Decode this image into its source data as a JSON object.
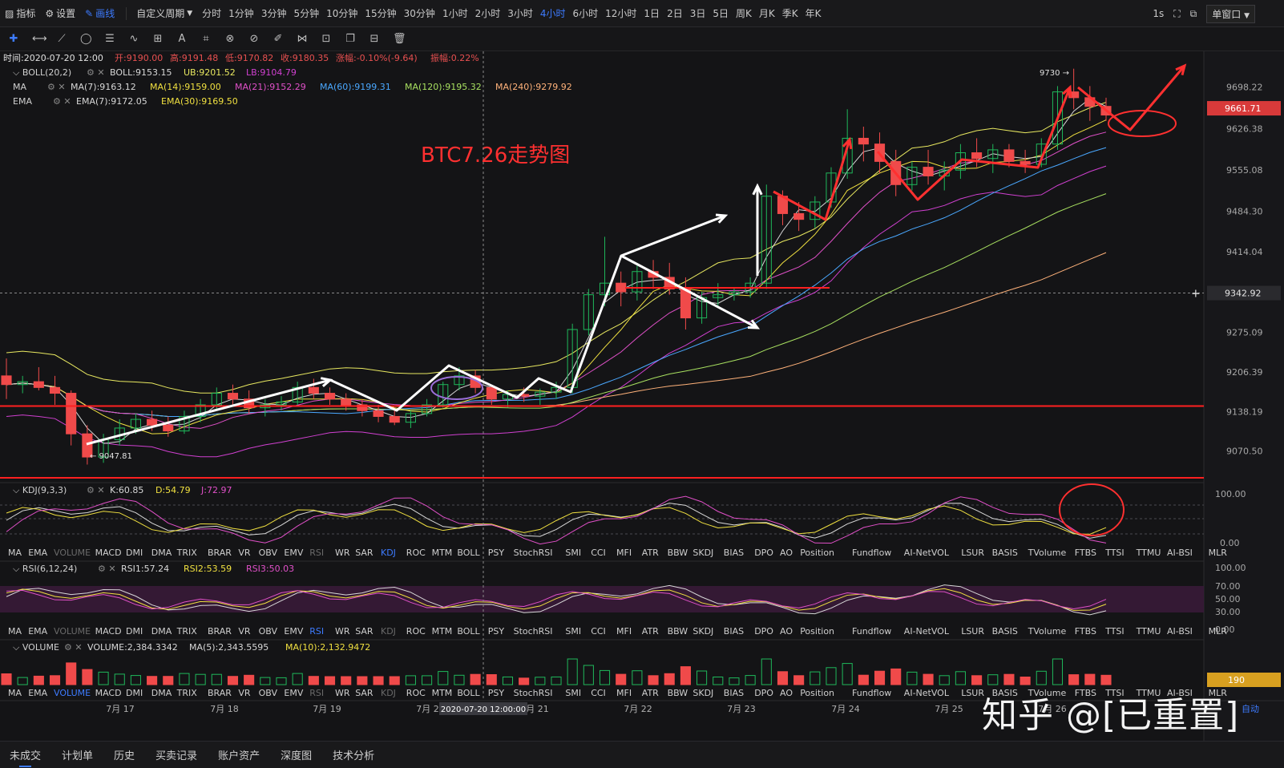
{
  "toolbar": {
    "indicators_label": "指标",
    "settings_label": "设置",
    "draw_label": "画线",
    "custom_period_label": "自定义周期",
    "periods": [
      "分时",
      "1分钟",
      "3分钟",
      "5分钟",
      "10分钟",
      "15分钟",
      "30分钟",
      "1小时",
      "2小时",
      "3小时",
      "4小时",
      "6小时",
      "12小时",
      "1日",
      "2日",
      "3日",
      "5日",
      "周K",
      "月K",
      "季K",
      "年K"
    ],
    "active_period": "4小时",
    "interval_label": "1s",
    "window_label": "单窗口"
  },
  "ohlc_info": {
    "time_label": "时间:",
    "time": "2020-07-20 12:00",
    "open_label": "开:",
    "open": "9190.00",
    "high_label": "高:",
    "high": "9191.48",
    "low_label": "低:",
    "low": "9170.82",
    "close_label": "收:",
    "close": "9180.35",
    "change_label": "涨幅:",
    "change": "-0.10%(-9.64)",
    "amplitude_label": "振幅:",
    "amplitude": "0.22%"
  },
  "legends": {
    "boll": {
      "name": "BOLL(20,2)",
      "mid": "BOLL:9153.15",
      "ub": "UB:9201.52",
      "lb": "LB:9104.79"
    },
    "ma": {
      "name": "MA",
      "ma7": "MA(7):9163.12",
      "ma14": "MA(14):9159.00",
      "ma21": "MA(21):9152.29",
      "ma60": "MA(60):9199.31",
      "ma120": "MA(120):9195.32",
      "ma240": "MA(240):9279.92"
    },
    "ema": {
      "name": "EMA",
      "ema7": "EMA(7):9172.05",
      "ema30": "EMA(30):9169.50"
    },
    "kdj": {
      "name": "KDJ(9,3,3)",
      "k": "K:60.85",
      "d": "D:54.79",
      "j": "J:72.97"
    },
    "rsi": {
      "name": "RSI(6,12,24)",
      "r1": "RSI1:57.24",
      "r2": "RSI2:53.59",
      "r3": "RSI3:50.03"
    },
    "volume": {
      "name": "VOLUME",
      "v": "VOLUME:2,384.3342",
      "ma5": "MA(5):2,343.5595",
      "ma10": "MA(10):2,132.9472"
    }
  },
  "annotation_title": "BTC7.26走势图",
  "price_axis_labels": [
    "9698.22",
    "9626.38",
    "9555.08",
    "9484.30",
    "9414.04",
    "9342.92",
    "9275.09",
    "9206.39",
    "9138.19",
    "9070.50"
  ],
  "current_price": "9661.71",
  "crosshair_price": "9342.92",
  "crosshair_time": "2020-07-20 12:00:00",
  "kdj_axis_labels": [
    "100.00",
    "0.00"
  ],
  "rsi_axis_labels": [
    "100.00",
    "70.00",
    "50.00",
    "30.00",
    "0.00"
  ],
  "volume_axis_label": "190",
  "high_marker": "9730",
  "low_marker": "9047.81",
  "date_labels": [
    "7月 17",
    "7月 18",
    "7月 19",
    "7月 20",
    "7月 21",
    "7月 22",
    "7月 23",
    "7月 24",
    "7月 25",
    "7月 26"
  ],
  "indicator_tabs": [
    "MA",
    "EMA",
    "VOLUME",
    "MACD",
    "DMI",
    "DMA",
    "TRIX",
    "BRAR",
    "VR",
    "OBV",
    "EMV",
    "RSI",
    "WR",
    "SAR",
    "KDJ",
    "ROC",
    "MTM",
    "BOLL",
    "PSY",
    "StochRSI",
    "SMI",
    "CCI",
    "MFI",
    "ATR",
    "BBW",
    "SKDJ",
    "BIAS",
    "DPO",
    "AO",
    "Position",
    "Fundflow",
    "AI-NetVOL",
    "LSUR",
    "BASIS",
    "TVolume",
    "FTBS",
    "TTSI",
    "TTMU",
    "AI-BSI",
    "MLR"
  ],
  "bottom_tabs": [
    "未成交",
    "计划单",
    "历史",
    "买卖记录",
    "账户资产",
    "深度图",
    "技术分析"
  ],
  "auto_label": "自动",
  "watermark": "知乎 @[已重置]",
  "colors": {
    "up": "#1fb85b",
    "down": "#f04a4a",
    "accent": "#3d7bff",
    "annotation_red": "#ff3030"
  },
  "chart_data": {
    "type": "candlestick",
    "title": "BTC7.26走势图",
    "interval": "4小时",
    "ylim": [
      9020,
      9760
    ],
    "candles": [
      [
        9200,
        9230,
        9160,
        9185
      ],
      [
        9185,
        9200,
        9170,
        9190
      ],
      [
        9190,
        9215,
        9175,
        9180
      ],
      [
        9180,
        9200,
        9150,
        9170
      ],
      [
        9170,
        9175,
        9080,
        9100
      ],
      [
        9100,
        9115,
        9047,
        9060
      ],
      [
        9060,
        9100,
        9050,
        9090
      ],
      [
        9090,
        9125,
        9080,
        9110
      ],
      [
        9110,
        9135,
        9100,
        9125
      ],
      [
        9125,
        9140,
        9105,
        9115
      ],
      [
        9115,
        9130,
        9095,
        9105
      ],
      [
        9105,
        9140,
        9100,
        9130
      ],
      [
        9130,
        9160,
        9120,
        9150
      ],
      [
        9150,
        9180,
        9140,
        9170
      ],
      [
        9170,
        9185,
        9150,
        9160
      ],
      [
        9160,
        9175,
        9135,
        9145
      ],
      [
        9145,
        9160,
        9130,
        9150
      ],
      [
        9150,
        9165,
        9140,
        9155
      ],
      [
        9155,
        9190,
        9150,
        9180
      ],
      [
        9180,
        9195,
        9160,
        9170
      ],
      [
        9170,
        9180,
        9150,
        9160
      ],
      [
        9160,
        9170,
        9140,
        9150
      ],
      [
        9150,
        9160,
        9130,
        9140
      ],
      [
        9140,
        9150,
        9120,
        9130
      ],
      [
        9130,
        9145,
        9115,
        9120
      ],
      [
        9120,
        9140,
        9110,
        9135
      ],
      [
        9135,
        9160,
        9130,
        9150
      ],
      [
        9150,
        9190,
        9145,
        9185
      ],
      [
        9185,
        9215,
        9175,
        9200
      ],
      [
        9200,
        9210,
        9170,
        9180
      ],
      [
        9180,
        9185,
        9150,
        9160
      ],
      [
        9160,
        9175,
        9145,
        9168
      ],
      [
        9168,
        9180,
        9155,
        9165
      ],
      [
        9165,
        9178,
        9150,
        9172
      ],
      [
        9172,
        9190,
        9160,
        9180
      ],
      [
        9180,
        9290,
        9170,
        9280
      ],
      [
        9280,
        9350,
        9270,
        9340
      ],
      [
        9340,
        9440,
        9320,
        9360
      ],
      [
        9360,
        9380,
        9320,
        9345
      ],
      [
        9345,
        9390,
        9330,
        9380
      ],
      [
        9380,
        9400,
        9350,
        9370
      ],
      [
        9370,
        9395,
        9340,
        9350
      ],
      [
        9350,
        9370,
        9280,
        9300
      ],
      [
        9300,
        9345,
        9290,
        9335
      ],
      [
        9335,
        9360,
        9320,
        9340
      ],
      [
        9340,
        9352,
        9330,
        9345
      ],
      [
        9345,
        9370,
        9335,
        9360
      ],
      [
        9360,
        9530,
        9350,
        9510
      ],
      [
        9510,
        9520,
        9460,
        9480
      ],
      [
        9480,
        9500,
        9450,
        9470
      ],
      [
        9470,
        9510,
        9455,
        9500
      ],
      [
        9500,
        9560,
        9490,
        9550
      ],
      [
        9550,
        9660,
        9540,
        9610
      ],
      [
        9610,
        9630,
        9570,
        9600
      ],
      [
        9600,
        9620,
        9550,
        9570
      ],
      [
        9570,
        9590,
        9510,
        9530
      ],
      [
        9530,
        9570,
        9520,
        9560
      ],
      [
        9560,
        9590,
        9530,
        9545
      ],
      [
        9545,
        9570,
        9520,
        9555
      ],
      [
        9555,
        9600,
        9540,
        9585
      ],
      [
        9585,
        9610,
        9560,
        9575
      ],
      [
        9575,
        9600,
        9550,
        9590
      ],
      [
        9590,
        9600,
        9560,
        9570
      ],
      [
        9570,
        9590,
        9550,
        9565
      ],
      [
        9565,
        9610,
        9560,
        9600
      ],
      [
        9600,
        9700,
        9590,
        9690
      ],
      [
        9690,
        9730,
        9660,
        9680
      ],
      [
        9680,
        9700,
        9640,
        9665
      ],
      [
        9665,
        9680,
        9640,
        9650
      ]
    ],
    "horizontal_lines": [
      9148,
      9352
    ]
  }
}
